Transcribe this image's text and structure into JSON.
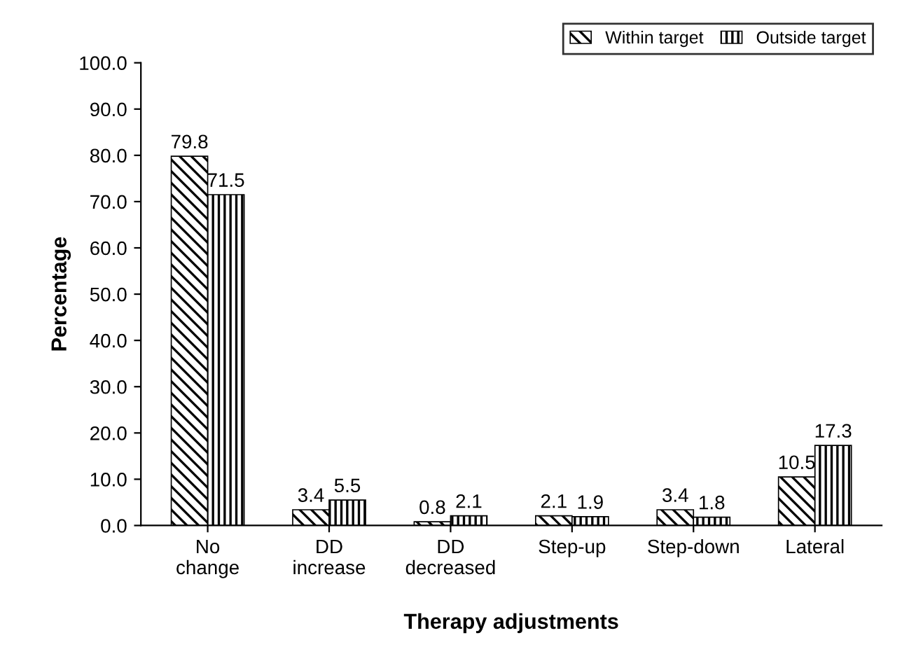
{
  "chart_data": {
    "type": "bar",
    "xlabel": "Therapy adjustments",
    "ylabel": "Percentage",
    "categories": [
      "No\nchange",
      "DD\nincrease",
      "DD\ndecreased",
      "Step-up",
      "Step-down",
      "Lateral"
    ],
    "series": [
      {
        "name": "Within target",
        "color": "#000000",
        "values": [
          79.8,
          3.4,
          0.8,
          2.1,
          3.4,
          10.5
        ]
      },
      {
        "name": "Outside target",
        "color": "#000000",
        "values": [
          71.5,
          5.5,
          2.1,
          1.9,
          1.8,
          17.3
        ]
      }
    ],
    "ylim": [
      0,
      100
    ],
    "yticks": [
      {
        "value": 0,
        "label": "0.0"
      },
      {
        "value": 10,
        "label": "10.0"
      },
      {
        "value": 20,
        "label": "20.0"
      },
      {
        "value": 30,
        "label": "30.0"
      },
      {
        "value": 40,
        "label": "40.0"
      },
      {
        "value": 50,
        "label": "50.0"
      },
      {
        "value": 60,
        "label": "60.0"
      },
      {
        "value": 70,
        "label": "70.0"
      },
      {
        "value": 80,
        "label": "80.0"
      },
      {
        "value": 90,
        "label": "90.0"
      },
      {
        "value": 100,
        "label": "100.0"
      }
    ],
    "data_labels": true,
    "legend": "top right",
    "grid": false
  }
}
